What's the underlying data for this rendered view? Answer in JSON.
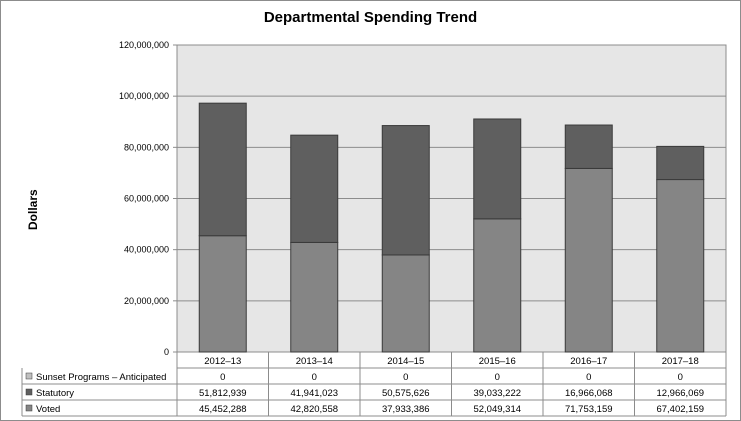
{
  "chart_data": {
    "type": "bar",
    "stacked": true,
    "title": "Departmental Spending Trend",
    "ylabel": "Dollars",
    "xlabel": "",
    "ylim": [
      0,
      120000000
    ],
    "yticks": [
      {
        "value": 0,
        "label": "0"
      },
      {
        "value": 20000000,
        "label": "20,000,000"
      },
      {
        "value": 40000000,
        "label": "40,000,000"
      },
      {
        "value": 60000000,
        "label": "60,000,000"
      },
      {
        "value": 80000000,
        "label": "80,000,000"
      },
      {
        "value": 100000000,
        "label": "100,000,000"
      },
      {
        "value": 120000000,
        "label": "120,000,000"
      }
    ],
    "grid": true,
    "categories": [
      "2012–13",
      "2013–14",
      "2014–15",
      "2015–16",
      "2016–17",
      "2017–18"
    ],
    "series": [
      {
        "name": "Sunset Programs – Anticipated",
        "color": "#bfbfbf",
        "values": [
          0,
          0,
          0,
          0,
          0,
          0
        ],
        "labels": [
          "0",
          "0",
          "0",
          "0",
          "0",
          "0"
        ]
      },
      {
        "name": "Statutory",
        "color": "#5f5f5f",
        "values": [
          51812939,
          41941023,
          50575626,
          39033222,
          16966068,
          12966069
        ],
        "labels": [
          "51,812,939",
          "41,941,023",
          "50,575,626",
          "39,033,222",
          "16,966,068",
          "12,966,069"
        ]
      },
      {
        "name": "Voted",
        "color": "#858585",
        "values": [
          45452288,
          42820558,
          37933386,
          52049314,
          71753159,
          67402159
        ],
        "labels": [
          "45,452,288",
          "42,820,558",
          "37,933,386",
          "52,049,314",
          "71,753,159",
          "67,402,159"
        ]
      }
    ],
    "legend": "data-table"
  }
}
